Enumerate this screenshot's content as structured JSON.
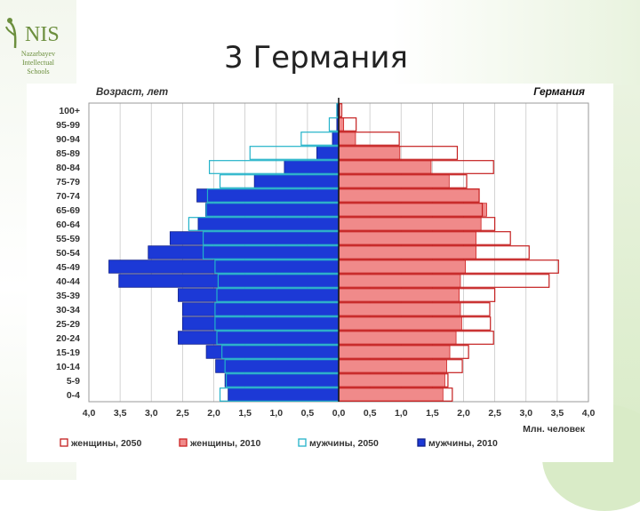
{
  "slide": {
    "title": "3 Германия",
    "logo": {
      "brand": "NIS",
      "lines": [
        "Nazarbayev",
        "Intellectual",
        "Schools"
      ]
    }
  },
  "colors": {
    "male_2010": "#1c39d6",
    "male_2050": "#22b2c9",
    "female_2010": "#f08a8a",
    "female_2010_stroke": "#cc2222",
    "female_2050": "#c41e1e",
    "grid": "#c8c8c8",
    "axis_text": "#333333"
  },
  "chart_data": {
    "type": "bar",
    "orientation": "horizontal-pyramid",
    "title": "Германия",
    "ylabel": "Возраст, лет",
    "xlabel": "Млн. человек",
    "xlim": [
      -4,
      4
    ],
    "x_ticks": [
      "4,0",
      "3,5",
      "3,0",
      "2,5",
      "2,0",
      "1,5",
      "1,0",
      "0,5",
      "0,0",
      "0,5",
      "1,0",
      "1,5",
      "2,0",
      "2,5",
      "3,0",
      "3,5",
      "4,0"
    ],
    "grid": true,
    "legend_position": "bottom",
    "categories": [
      "100+",
      "95-99",
      "90-94",
      "85-89",
      "80-84",
      "75-79",
      "70-74",
      "65-69",
      "60-64",
      "55-59",
      "50-54",
      "45-49",
      "40-44",
      "35-39",
      "30-34",
      "25-29",
      "20-24",
      "15-19",
      "10-14",
      "5-9",
      "0-4"
    ],
    "series": [
      {
        "name": "женщины, 2050",
        "side": "right",
        "style": "outline",
        "values": [
          0.05,
          0.28,
          0.97,
          1.9,
          2.48,
          2.05,
          2.25,
          2.3,
          2.5,
          2.75,
          3.05,
          3.52,
          3.37,
          2.5,
          2.42,
          2.43,
          2.48,
          2.08,
          1.98,
          1.75,
          1.82
        ]
      },
      {
        "name": "женщины, 2010",
        "side": "right",
        "style": "filled",
        "values": [
          0.02,
          0.08,
          0.27,
          0.98,
          1.48,
          1.77,
          2.25,
          2.37,
          2.28,
          2.2,
          2.2,
          2.03,
          1.95,
          1.93,
          1.95,
          1.97,
          1.88,
          1.78,
          1.73,
          1.7,
          1.67
        ]
      },
      {
        "name": "мужчины, 2050",
        "side": "left",
        "style": "outline",
        "values": [
          0.03,
          0.15,
          0.6,
          1.42,
          2.07,
          1.9,
          2.1,
          2.12,
          2.4,
          2.17,
          2.17,
          1.98,
          1.93,
          1.95,
          1.98,
          1.98,
          1.95,
          1.87,
          1.82,
          1.8,
          1.9
        ]
      },
      {
        "name": "мужчины, 2010",
        "side": "left",
        "style": "filled",
        "values": [
          0.02,
          0.03,
          0.1,
          0.35,
          0.87,
          1.35,
          2.27,
          2.13,
          2.25,
          2.7,
          3.05,
          3.68,
          3.52,
          2.57,
          2.5,
          2.5,
          2.57,
          2.12,
          1.97,
          1.82,
          1.77
        ]
      }
    ]
  }
}
